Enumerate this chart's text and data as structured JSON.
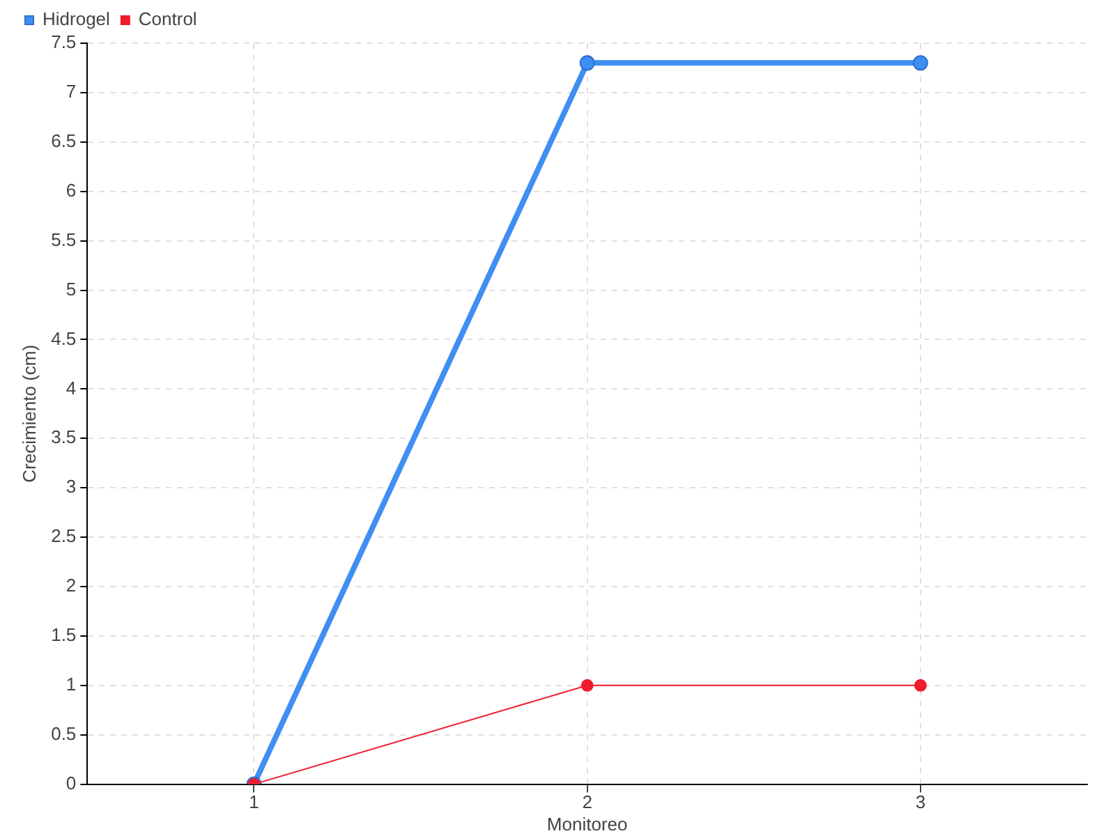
{
  "chart_data": {
    "type": "line",
    "xlabel": "Monitoreo",
    "ylabel": "Crecimiento (cm)",
    "categories": [
      "1",
      "2",
      "3"
    ],
    "series": [
      {
        "name": "Hidrogel",
        "color": "#3f8ff2",
        "values": [
          0,
          7.3,
          7.3
        ]
      },
      {
        "name": "Control",
        "color": "#ee1c2c",
        "values": [
          0,
          1,
          1
        ]
      }
    ],
    "ylim": [
      0,
      7.5
    ],
    "yticks": [
      0,
      0.5,
      1,
      1.5,
      2,
      2.5,
      3,
      3.5,
      4,
      4.5,
      5,
      5.5,
      6,
      6.5,
      7,
      7.5
    ],
    "grid": true,
    "legend": "top left",
    "marker": "circle",
    "line_style": "solid"
  }
}
